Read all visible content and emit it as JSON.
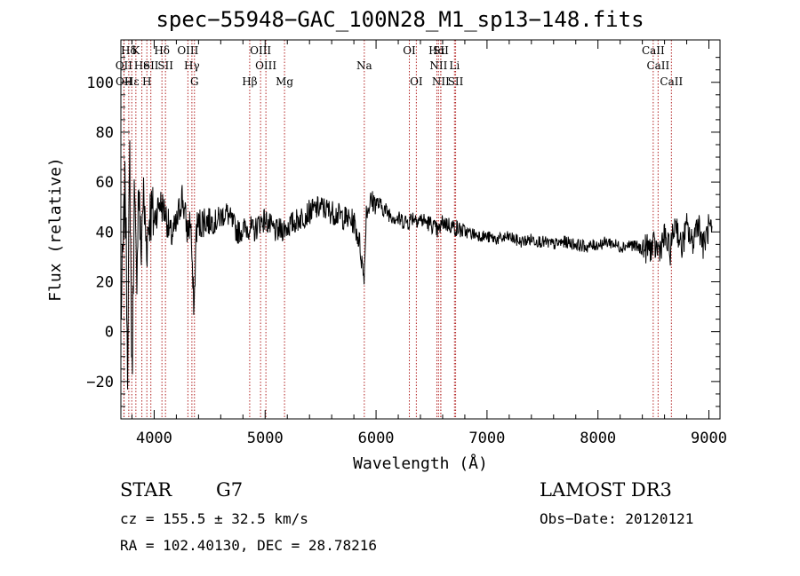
{
  "chart_data": {
    "type": "line",
    "title": "spec−55948−GAC_100N28_M1_sp13−148.fits",
    "xlabel": "Wavelength (Å)",
    "ylabel": "Flux (relative)",
    "xlim": [
      3700,
      9100
    ],
    "ylim": [
      -35,
      117
    ],
    "xticks": [
      4000,
      5000,
      6000,
      7000,
      8000,
      9000
    ],
    "yticks": [
      -20,
      0,
      20,
      40,
      60,
      80,
      100
    ],
    "spectrum": {
      "x": [
        3700,
        3740,
        3760,
        3780,
        3800,
        3820,
        3840,
        3860,
        3880,
        3900,
        3930,
        3960,
        4000,
        4050,
        4100,
        4150,
        4200,
        4250,
        4300,
        4330,
        4345,
        4360,
        4380,
        4450,
        4550,
        4650,
        4750,
        4860,
        4900,
        4950,
        5000,
        5050,
        5100,
        5200,
        5300,
        5400,
        5500,
        5600,
        5700,
        5800,
        5850,
        5890,
        5900,
        5910,
        5950,
        6000,
        6050,
        6100,
        6200,
        6300,
        6320,
        6400,
        6500,
        6560,
        6600,
        6700,
        6800,
        6900,
        7000,
        7100,
        7200,
        7300,
        7400,
        7500,
        7600,
        7700,
        7800,
        7900,
        8000,
        8100,
        8200,
        8300,
        8400,
        8500,
        8550,
        8600,
        8650,
        8700,
        8750,
        8800,
        8850,
        8900,
        8950,
        9000,
        9030
      ],
      "y": [
        5,
        60,
        -10,
        70,
        -20,
        55,
        20,
        60,
        30,
        55,
        35,
        48,
        45,
        52,
        48,
        38,
        42,
        55,
        40,
        45,
        20,
        10,
        42,
        45,
        44,
        48,
        40,
        42,
        40,
        44,
        45,
        42,
        40,
        42,
        45,
        48,
        50,
        48,
        46,
        44,
        36,
        22,
        30,
        48,
        52,
        52,
        50,
        48,
        45,
        44,
        46,
        45,
        43,
        40,
        44,
        42,
        40,
        39,
        38,
        37,
        38,
        36,
        37,
        36,
        35,
        36,
        35,
        34,
        35,
        36,
        34,
        35,
        33,
        34,
        33,
        38,
        32,
        45,
        33,
        42,
        35,
        45,
        34,
        42,
        38
      ]
    },
    "lines": [
      {
        "label": "Hδ",
        "wave": 3771,
        "row": 1
      },
      {
        "label": "OII",
        "wave": 3727,
        "row": 2
      },
      {
        "label": "OII",
        "wave": 3729,
        "row": 3
      },
      {
        "label": "Hε",
        "wave": 3798,
        "row": 3
      },
      {
        "label": "K",
        "wave": 3835,
        "row": 1
      },
      {
        "label": "He",
        "wave": 3889,
        "row": 2
      },
      {
        "label": "H",
        "wave": 3934,
        "row": 3
      },
      {
        "label": "SII",
        "wave": 3970,
        "row": 2
      },
      {
        "label": "Hδ",
        "wave": 4070,
        "row": 1
      },
      {
        "label": "SII",
        "wave": 4102,
        "row": 2
      },
      {
        "label": "OIII",
        "wave": 4304,
        "row": 1
      },
      {
        "label": "Hγ",
        "wave": 4340,
        "row": 2
      },
      {
        "label": "G",
        "wave": 4363,
        "row": 3
      },
      {
        "label": "Hβ",
        "wave": 4861,
        "row": 3
      },
      {
        "label": "OIII",
        "wave": 4959,
        "row": 1
      },
      {
        "label": "OIII",
        "wave": 5007,
        "row": 2
      },
      {
        "label": "Mg",
        "wave": 5175,
        "row": 3
      },
      {
        "label": "Na",
        "wave": 5894,
        "row": 2
      },
      {
        "label": "OI",
        "wave": 6300,
        "row": 1
      },
      {
        "label": "OI",
        "wave": 6363,
        "row": 3
      },
      {
        "label": "Hα",
        "wave": 6548,
        "row": 1
      },
      {
        "label": "NII",
        "wave": 6563,
        "row": 2
      },
      {
        "label": "SII",
        "wave": 6584,
        "row": 1
      },
      {
        "label": "NII",
        "wave": 6583,
        "row": 3
      },
      {
        "label": "Li",
        "wave": 6707,
        "row": 2
      },
      {
        "label": "SII",
        "wave": 6717,
        "row": 3
      },
      {
        "label": "CaII",
        "wave": 8498,
        "row": 1
      },
      {
        "label": "CaII",
        "wave": 8542,
        "row": 2
      },
      {
        "label": "CaII",
        "wave": 8662,
        "row": 3
      }
    ]
  },
  "footer": {
    "object_class": "STAR",
    "subclass": "G7",
    "survey": "LAMOST DR3",
    "redshift": "cz = 155.5 ± 32.5 km/s",
    "obs_date": "Obs−Date: 20120121",
    "coords": "RA = 102.40130, DEC =  28.78216"
  }
}
